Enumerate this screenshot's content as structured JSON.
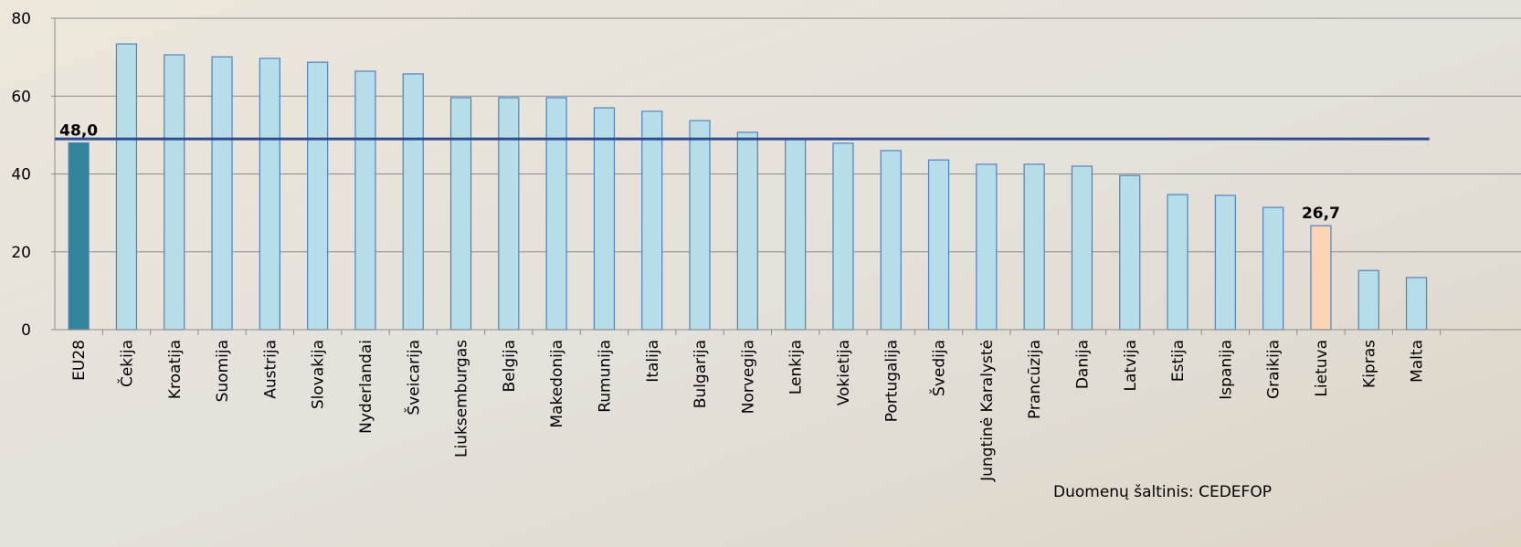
{
  "chart_data": {
    "type": "bar",
    "categories": [
      "EU28",
      "Čekija",
      "Kroatija",
      "Suomija",
      "Austrija",
      "Slovakija",
      "Nyderlandai",
      "Šveicarija",
      "Liuksemburgas",
      "Belgija",
      "Makedonija",
      "Rumunija",
      "Italija",
      "Bulgarija",
      "Norvegija",
      "Lenkija",
      "Vokietija",
      "Portugalija",
      "Švedija",
      "Jungtinė Karalystė",
      "Prancūzija",
      "Danija",
      "Latvija",
      "Estija",
      "Ispanija",
      "Graikija",
      "Lietuva",
      "Kipras",
      "Malta"
    ],
    "values": [
      48.0,
      73.4,
      70.6,
      70.1,
      69.7,
      68.7,
      66.4,
      65.7,
      59.6,
      59.6,
      59.6,
      57.0,
      56.1,
      53.7,
      50.7,
      49.0,
      47.9,
      46.0,
      43.6,
      42.5,
      42.5,
      42.0,
      39.6,
      34.7,
      34.5,
      31.4,
      26.7,
      15.2,
      13.4
    ],
    "value_labels": [
      "48,0",
      null,
      null,
      null,
      null,
      null,
      null,
      null,
      null,
      null,
      null,
      null,
      null,
      null,
      null,
      null,
      null,
      null,
      null,
      null,
      null,
      null,
      null,
      null,
      null,
      null,
      "26,7",
      null,
      null
    ],
    "colors": [
      "#31849b",
      "#b7dee8",
      "#b7dee8",
      "#b7dee8",
      "#b7dee8",
      "#b7dee8",
      "#b7dee8",
      "#b7dee8",
      "#b7dee8",
      "#b7dee8",
      "#b7dee8",
      "#b7dee8",
      "#b7dee8",
      "#b7dee8",
      "#b7dee8",
      "#b7dee8",
      "#b7dee8",
      "#b7dee8",
      "#b7dee8",
      "#b7dee8",
      "#b7dee8",
      "#b7dee8",
      "#b7dee8",
      "#b7dee8",
      "#b7dee8",
      "#b7dee8",
      "#fcd5b5",
      "#b7dee8",
      "#b7dee8"
    ],
    "reference_line": 49.0,
    "reference_color": "#2e4c8f",
    "ylim": [
      0,
      80
    ],
    "yticks": [
      0,
      20,
      40,
      60,
      80
    ],
    "grid": true,
    "source": "Duomenų šaltinis: CEDEFOP"
  }
}
